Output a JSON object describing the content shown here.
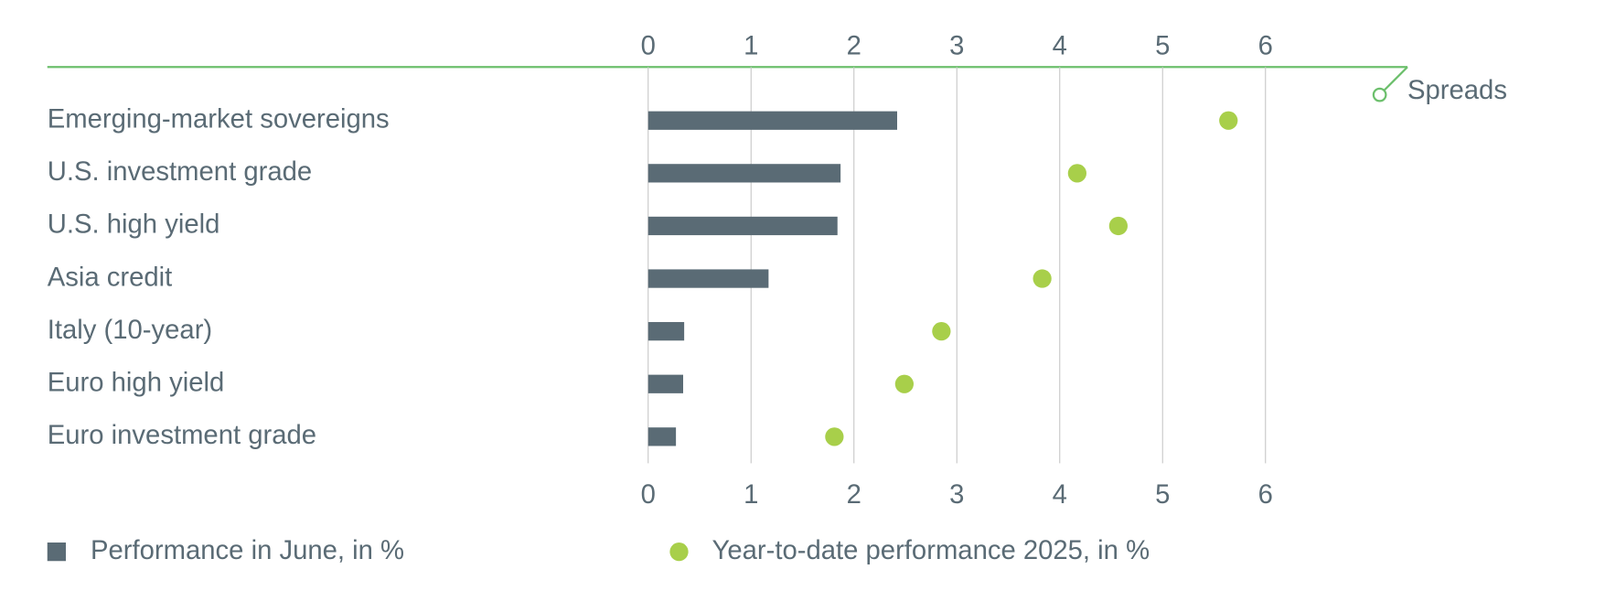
{
  "chart_data": {
    "type": "bar",
    "categories": [
      "Emerging-market sovereigns",
      "U.S. investment grade",
      "U.S. high yield",
      "Asia credit",
      "Italy (10-year)",
      "Euro high yield",
      "Euro investment grade"
    ],
    "series": [
      {
        "name": "Performance in June, in %",
        "marker": "bar",
        "color": "#5a6b75",
        "values": [
          2.42,
          1.87,
          1.84,
          1.17,
          0.35,
          0.34,
          0.27
        ]
      },
      {
        "name": "Year-to-date performance 2025, in %",
        "marker": "dot",
        "color": "#a8cf4a",
        "values": [
          5.64,
          4.17,
          4.57,
          3.83,
          2.85,
          2.49,
          1.81
        ]
      }
    ],
    "xlim": [
      0,
      6
    ],
    "xticks": [
      0,
      1,
      2,
      3,
      4,
      5,
      6
    ],
    "grid": true,
    "annotation": "Spreads"
  }
}
